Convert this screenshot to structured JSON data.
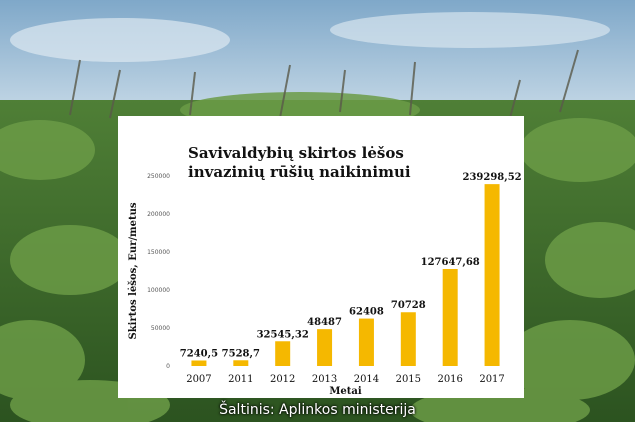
{
  "caption": "Šaltinis: Aplinkos ministerija",
  "colors": {
    "bar": "#f5b800",
    "sky": "#9fc0da",
    "foliage": "#3d6b2c"
  },
  "chart_data": {
    "type": "bar",
    "title_line1": "Savivaldybių skirtos lėšos",
    "title_line2": "invazinių rūšių naikinimui",
    "xlabel": "Metai",
    "ylabel": "Skirtos lėšos, Eur/metus",
    "categories": [
      "2007",
      "2011",
      "2012",
      "2013",
      "2014",
      "2015",
      "2016",
      "2017"
    ],
    "values": [
      7240.5,
      7528.7,
      32545.32,
      48487,
      62408,
      70728,
      127647.68,
      239298.52
    ],
    "value_labels": [
      "7240,5",
      "7528,7",
      "32545,32",
      "48487",
      "62408",
      "70728",
      "127647,68",
      "239298,52"
    ],
    "yticks": [
      "0",
      "50000",
      "100000",
      "150000",
      "200000",
      "250000"
    ],
    "ylim": [
      0,
      250000
    ],
    "grid": false,
    "legend": "none"
  }
}
